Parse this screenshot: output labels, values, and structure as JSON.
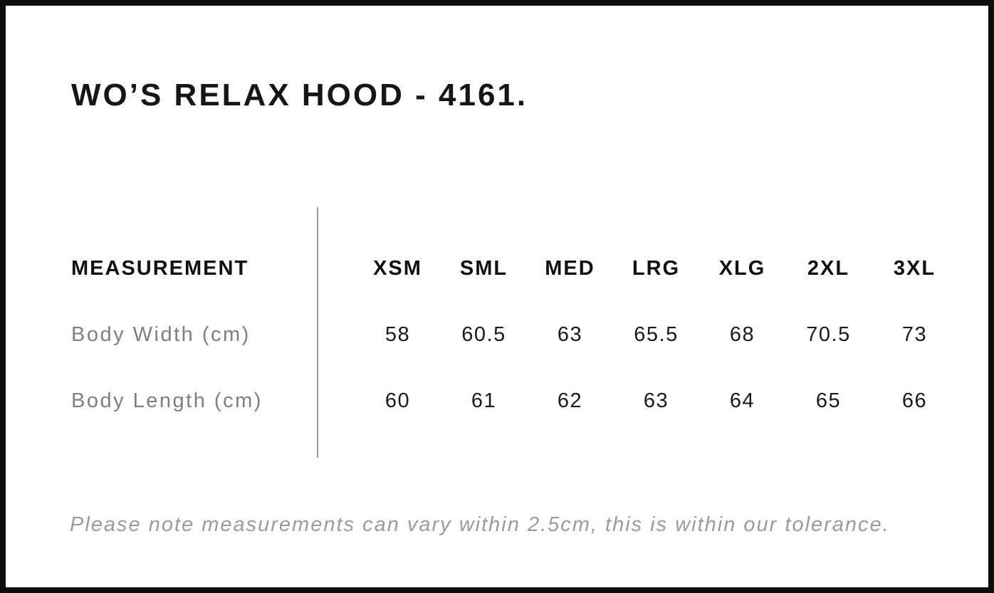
{
  "title": "WO’S RELAX HOOD - 4161.",
  "table": {
    "measurement_header": "MEASUREMENT",
    "sizes": [
      "XSM",
      "SML",
      "MED",
      "LRG",
      "XLG",
      "2XL",
      "3XL"
    ],
    "rows": [
      {
        "label": "Body Width (cm)",
        "values": [
          "58",
          "60.5",
          "63",
          "65.5",
          "68",
          "70.5",
          "73"
        ]
      },
      {
        "label": "Body Length (cm)",
        "values": [
          "60",
          "61",
          "62",
          "63",
          "64",
          "65",
          "66"
        ]
      }
    ]
  },
  "note": "Please note measurements can vary within 2.5cm, this is within our tolerance.",
  "colors": {
    "frame_black": "#0d0d0d",
    "text_black": "#1a1a1a",
    "label_gray": "#7f7f7f",
    "note_gray": "#9b9b9b",
    "divider_gray": "#9a9a9a"
  },
  "chart_data": {
    "type": "table",
    "title": "WO’S RELAX HOOD - 4161.",
    "columns": [
      "MEASUREMENT",
      "XSM",
      "SML",
      "MED",
      "LRG",
      "XLG",
      "2XL",
      "3XL"
    ],
    "rows": [
      [
        "Body Width (cm)",
        58,
        60.5,
        63,
        65.5,
        68,
        70.5,
        73
      ],
      [
        "Body Length (cm)",
        60,
        61,
        62,
        63,
        64,
        65,
        66
      ]
    ],
    "footnote": "Please note measurements can vary within 2.5cm, this is within our tolerance."
  }
}
